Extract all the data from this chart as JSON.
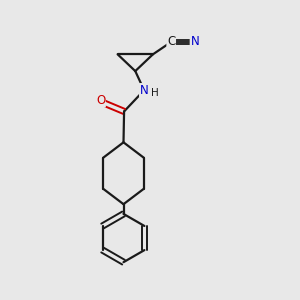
{
  "background_color": "#e8e8e8",
  "bond_color": "#1a1a1a",
  "oxygen_color": "#cc0000",
  "nitrogen_color": "#0000cc",
  "figsize": [
    3.0,
    3.0
  ],
  "dpi": 100,
  "xlim": [
    0,
    10
  ],
  "ylim": [
    0,
    10
  ]
}
